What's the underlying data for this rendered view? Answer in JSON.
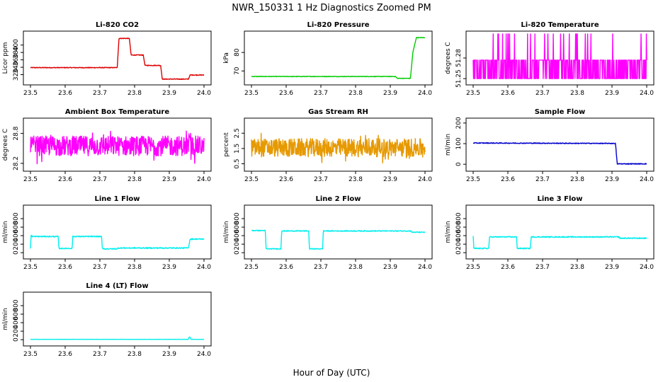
{
  "title": "NWR_150331  1 Hz Diagnostics Zoomed PM",
  "xlabel": "Hour of Day (UTC)",
  "chart_data": [
    {
      "type": "line",
      "title": "Li-820 CO2",
      "ylabel": "Licor ppm",
      "color": "#dd0000",
      "xlim": [
        23.5,
        24.0
      ],
      "x_ticks": [
        "23.5",
        "23.6",
        "23.7",
        "23.8",
        "23.9",
        "24.0"
      ],
      "ylim": [
        300,
        430
      ],
      "y_ticks": [
        320,
        340,
        360,
        380,
        400
      ],
      "noise": 1,
      "series": [
        {
          "x": [
            23.5,
            23.75,
            23.755,
            23.785,
            23.79,
            23.825,
            23.83,
            23.875,
            23.88,
            23.955,
            23.96,
            24.0
          ],
          "values": [
            339,
            339,
            418,
            418,
            373,
            373,
            345,
            345,
            308,
            308,
            319,
            319
          ]
        }
      ]
    },
    {
      "type": "line",
      "title": "Li-820 Pressure",
      "ylabel": "kPa",
      "color": "#00cc00",
      "xlim": [
        23.5,
        24.0
      ],
      "x_ticks": [
        "23.5",
        "23.6",
        "23.7",
        "23.8",
        "23.9",
        "24.0"
      ],
      "ylim": [
        64,
        90
      ],
      "y_ticks": [
        70,
        80
      ],
      "noise": 0.15,
      "series": [
        {
          "x": [
            23.5,
            23.915,
            23.92,
            23.958,
            23.965,
            23.975,
            23.995
          ],
          "values": [
            67,
            67,
            66,
            66,
            80,
            88,
            88
          ]
        }
      ]
    },
    {
      "type": "line",
      "title": "Li-820 Temperature",
      "ylabel": "degrees C",
      "color": "#ff00ff",
      "xlim": [
        23.5,
        24.0
      ],
      "x_ticks": [
        "23.5",
        "23.6",
        "23.7",
        "23.8",
        "23.9",
        "24.0"
      ],
      "ylim": [
        51.245,
        51.315
      ],
      "y_ticks": [
        51.25,
        51.28
      ],
      "pattern": "toggle",
      "levels": [
        51.25,
        51.277,
        51.315
      ],
      "series": [
        {
          "x": [
            23.5,
            24.0
          ],
          "values": [
            51.25,
            51.277
          ]
        }
      ]
    },
    {
      "type": "line",
      "title": "Ambient Box Temperature",
      "ylabel": "degrees C",
      "color": "#ff00ff",
      "xlim": [
        23.5,
        24.0
      ],
      "x_ticks": [
        "23.5",
        "23.6",
        "23.7",
        "23.8",
        "23.9",
        "24.0"
      ],
      "ylim": [
        28.1,
        29.05
      ],
      "y_ticks": [
        28.2,
        28.8
      ],
      "pattern": "band",
      "center": 28.55,
      "spread": 0.4,
      "series": [
        {
          "x": [
            23.5,
            24.0
          ],
          "values": [
            28.55,
            28.55
          ]
        }
      ]
    },
    {
      "type": "line",
      "title": "Gas Stream RH",
      "ylabel": "percent",
      "color": "#e69900",
      "xlim": [
        23.5,
        24.0
      ],
      "x_ticks": [
        "23.5",
        "23.6",
        "23.7",
        "23.8",
        "23.9",
        "24.0"
      ],
      "ylim": [
        0.2,
        3.3
      ],
      "y_ticks": [
        0.5,
        1.5,
        2.5
      ],
      "pattern": "band",
      "center": 1.55,
      "spread": 1.2,
      "series": [
        {
          "x": [
            23.5,
            24.0
          ],
          "values": [
            1.55,
            1.55
          ]
        }
      ]
    },
    {
      "type": "line",
      "title": "Sample Flow",
      "ylabel": "ml/min",
      "color": "#0000cc",
      "xlim": [
        23.5,
        24.0
      ],
      "x_ticks": [
        "23.5",
        "23.6",
        "23.7",
        "23.8",
        "23.9",
        "24.0"
      ],
      "ylim": [
        -20,
        210
      ],
      "y_ticks": [
        0,
        100,
        200
      ],
      "noise": 2,
      "series": [
        {
          "x": [
            23.5,
            23.91,
            23.915,
            24.0
          ],
          "values": [
            103,
            101,
            2,
            2
          ]
        }
      ]
    },
    {
      "type": "line",
      "title": "Line 1 Flow",
      "ylabel": "ml/min",
      "color": "#00eeee",
      "xlim": [
        23.5,
        24.0
      ],
      "x_ticks": [
        "23.5",
        "23.6",
        "23.7",
        "23.8",
        "23.9",
        "24.0"
      ],
      "ylim": [
        -80,
        1050
      ],
      "y_ticks": [
        0,
        200,
        400,
        600,
        800
      ],
      "noise": 12,
      "series": [
        {
          "x": [
            23.5,
            23.502,
            23.505,
            23.58,
            23.582,
            23.62,
            23.622,
            23.705,
            23.707,
            23.75,
            23.752,
            23.955,
            23.96,
            24.0
          ],
          "values": [
            100,
            420,
            380,
            380,
            100,
            100,
            380,
            380,
            90,
            90,
            110,
            110,
            320,
            320
          ]
        }
      ]
    },
    {
      "type": "line",
      "title": "Line 2 Flow",
      "ylabel": "ml/min",
      "color": "#00eeee",
      "xlim": [
        23.5,
        24.0
      ],
      "x_ticks": [
        "23.5",
        "23.6",
        "23.7",
        "23.8",
        "23.9",
        "24.0"
      ],
      "ylim": [
        -80,
        1050
      ],
      "y_ticks": [
        0,
        200,
        400,
        600,
        800
      ],
      "noise": 10,
      "series": [
        {
          "x": [
            23.5,
            23.54,
            23.542,
            23.585,
            23.587,
            23.665,
            23.667,
            23.705,
            23.707,
            23.96,
            23.962,
            24.0
          ],
          "values": [
            520,
            520,
            90,
            90,
            510,
            510,
            90,
            90,
            510,
            510,
            480,
            480
          ]
        }
      ]
    },
    {
      "type": "line",
      "title": "Line 3 Flow",
      "ylabel": "ml/min",
      "color": "#00eeee",
      "xlim": [
        23.5,
        24.0
      ],
      "x_ticks": [
        "23.5",
        "23.6",
        "23.7",
        "23.8",
        "23.9",
        "24.0"
      ],
      "ylim": [
        -80,
        1050
      ],
      "y_ticks": [
        0,
        200,
        400,
        600,
        800
      ],
      "noise": 12,
      "series": [
        {
          "x": [
            23.5,
            23.502,
            23.505,
            23.545,
            23.547,
            23.625,
            23.627,
            23.665,
            23.667,
            23.92,
            23.922,
            24.0
          ],
          "values": [
            380,
            100,
            100,
            100,
            370,
            370,
            100,
            100,
            370,
            370,
            340,
            340
          ]
        }
      ]
    },
    {
      "type": "line",
      "title": "Line 4 (LT) Flow",
      "ylabel": "ml/min",
      "color": "#00eeee",
      "xlim": [
        23.5,
        24.0
      ],
      "x_ticks": [
        "23.5",
        "23.6",
        "23.7",
        "23.8",
        "23.9",
        "24.0"
      ],
      "ylim": [
        -80,
        1050
      ],
      "y_ticks": [
        0,
        200,
        400,
        600,
        800
      ],
      "noise": 2,
      "series": [
        {
          "x": [
            23.5,
            23.955,
            23.957,
            23.96,
            23.962,
            24.0
          ],
          "values": [
            8,
            8,
            60,
            60,
            8,
            8
          ]
        }
      ]
    }
  ]
}
